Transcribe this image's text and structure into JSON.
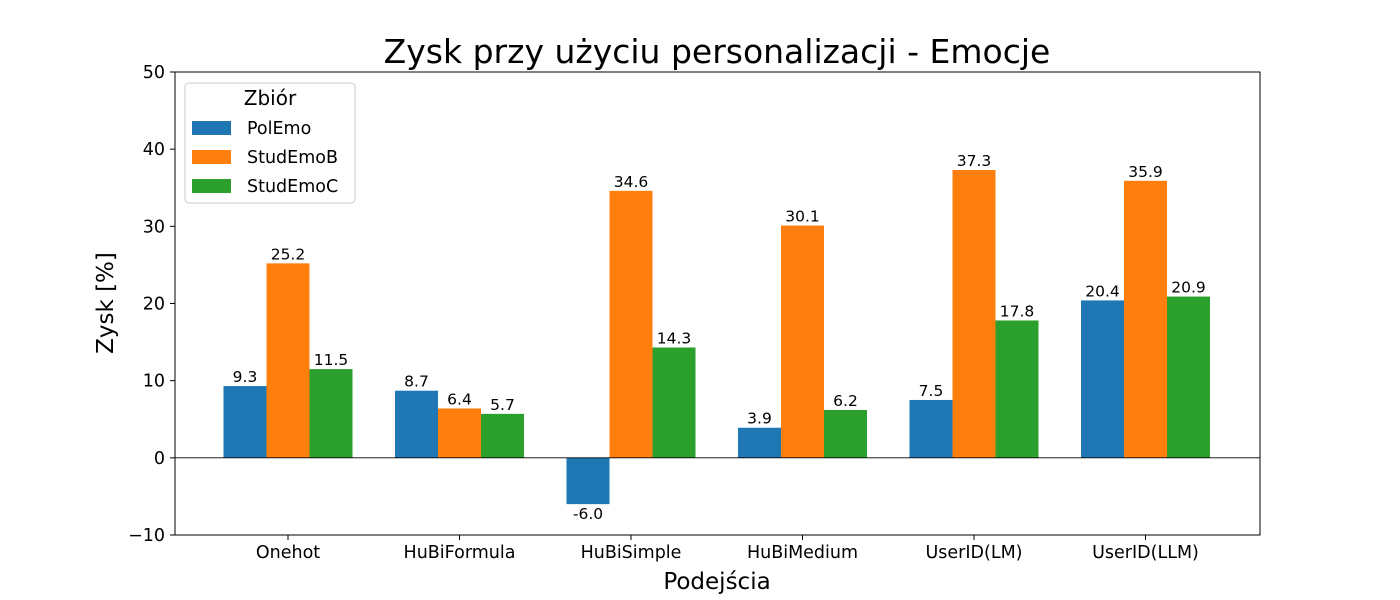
{
  "chart_data": {
    "type": "bar",
    "title": "Zysk przy użyciu personalizacji - Emocje",
    "xlabel": "Podejścia",
    "ylabel": "Zysk [%]",
    "ylim": [
      -10,
      50
    ],
    "yticks": [
      -10,
      0,
      10,
      20,
      30,
      40,
      50
    ],
    "ytick_labels": [
      "−10",
      "0",
      "10",
      "20",
      "30",
      "40",
      "50"
    ],
    "categories": [
      "Onehot",
      "HuBiFormula",
      "HuBiSimple",
      "HuBiMedium",
      "UserID(LM)",
      "UserID(LLM)"
    ],
    "series": [
      {
        "name": "PolEmo",
        "color": "#1f77b4",
        "values": [
          9.3,
          8.7,
          -6.0,
          3.9,
          7.5,
          20.4
        ],
        "labels": [
          "9.3",
          "8.7",
          "-6.0",
          "3.9",
          "7.5",
          "20.4"
        ]
      },
      {
        "name": "StudEmoB",
        "color": "#ff7f0e",
        "values": [
          25.2,
          6.4,
          34.6,
          30.1,
          37.3,
          35.9
        ],
        "labels": [
          "25.2",
          "6.4",
          "34.6",
          "30.1",
          "37.3",
          "35.9"
        ]
      },
      {
        "name": "StudEmoC",
        "color": "#2ca02c",
        "values": [
          11.5,
          5.7,
          14.3,
          6.2,
          17.8,
          20.9
        ],
        "labels": [
          "11.5",
          "5.7",
          "14.3",
          "6.2",
          "17.8",
          "20.9"
        ]
      }
    ],
    "legend": {
      "title": "Zbiór",
      "placement": "top-left"
    },
    "zero_line": true,
    "grid": false
  }
}
